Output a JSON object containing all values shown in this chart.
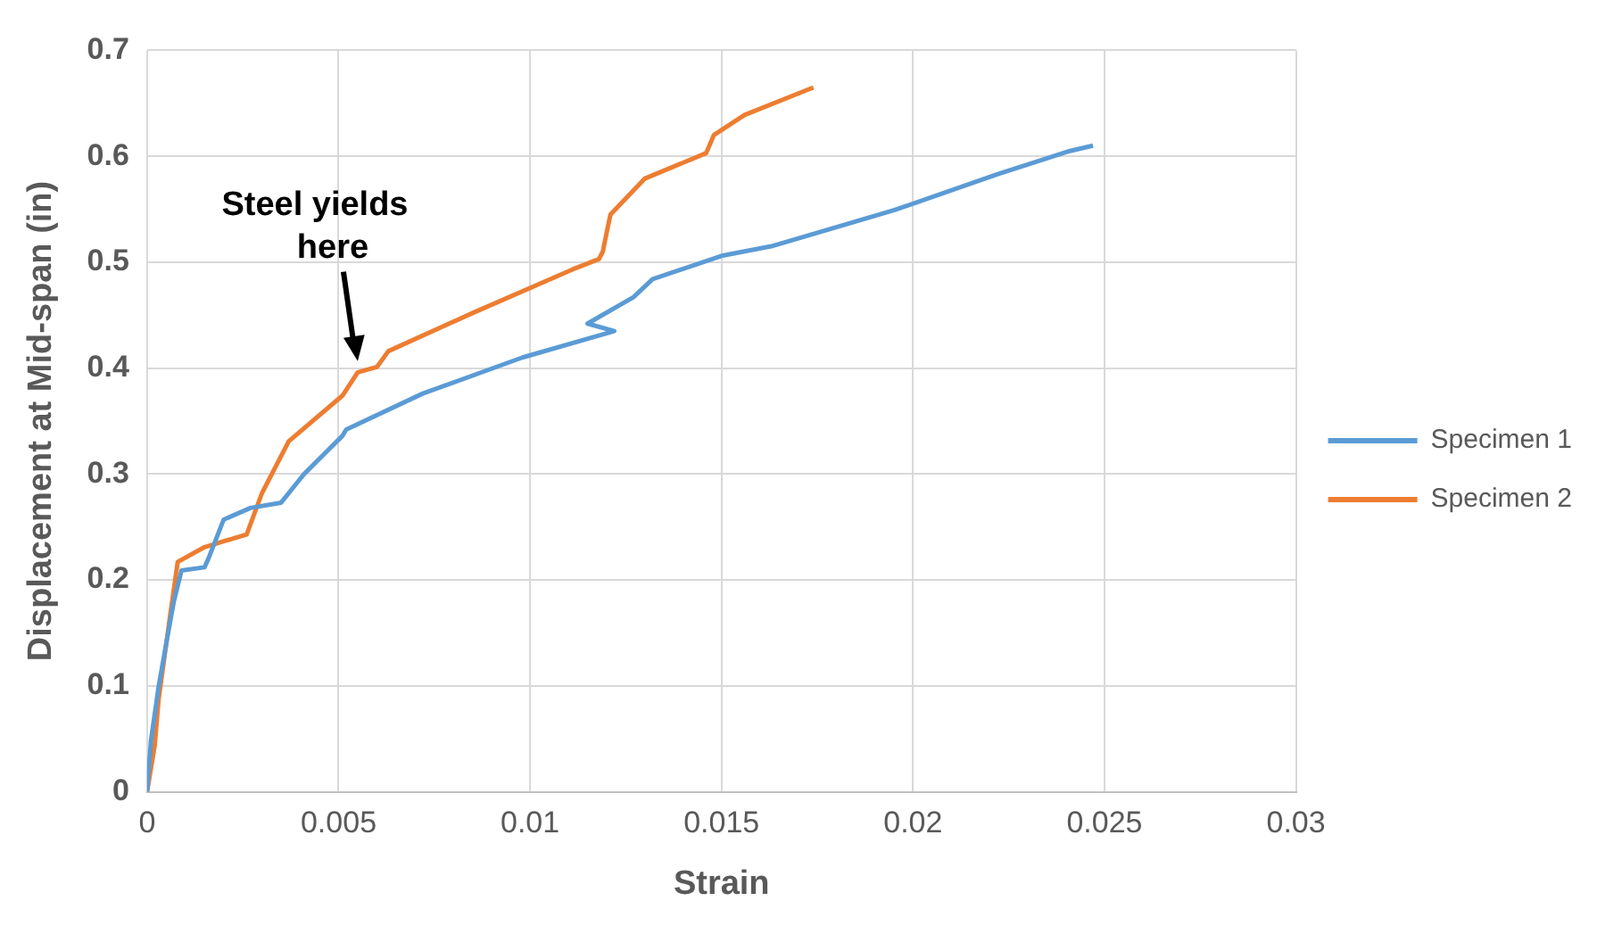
{
  "chart_data": {
    "type": "line",
    "xlabel": "Strain",
    "ylabel": "Displacement at Mid-span (in)",
    "xlim": [
      0,
      0.03
    ],
    "xticks": [
      0,
      0.005,
      0.01,
      0.015,
      0.02,
      0.025,
      0.03
    ],
    "ylim": [
      0,
      0.7
    ],
    "yticks": [
      0,
      0.1,
      0.2,
      0.3,
      0.4,
      0.5,
      0.6,
      0.7
    ],
    "grid": true,
    "legend": "right",
    "marker": "none",
    "line_style": "solid",
    "annotations": [
      {
        "text": "Steel yields here",
        "x": 0.0055,
        "y": 0.4
      }
    ],
    "series": [
      {
        "name": "Specimen 1",
        "color": "#5b9bd5",
        "x": [
          0,
          0.0001,
          0.0003,
          0.0005,
          0.0007,
          0.0009,
          0.0015,
          0.0016,
          0.002,
          0.0027,
          0.0035,
          0.0039,
          0.0041,
          0.0051,
          0.0052,
          0.0072,
          0.0098,
          0.0122,
          0.0115,
          0.0127,
          0.0132,
          0.015,
          0.0163,
          0.0195,
          0.0222,
          0.0241,
          0.0247
        ],
        "values": [
          0,
          0.048,
          0.099,
          0.14,
          0.18,
          0.209,
          0.212,
          0.22,
          0.257,
          0.268,
          0.273,
          0.291,
          0.3,
          0.336,
          0.342,
          0.376,
          0.41,
          0.435,
          0.442,
          0.467,
          0.484,
          0.506,
          0.515,
          0.549,
          0.583,
          0.605,
          0.61
        ]
      },
      {
        "name": "Specimen 2",
        "color": "#ed7d31",
        "x": [
          0,
          0.0002,
          0.0003,
          0.0006,
          0.0008,
          0.0015,
          0.0026,
          0.003,
          0.0037,
          0.0051,
          0.0055,
          0.006,
          0.0063,
          0.0085,
          0.0111,
          0.0118,
          0.0119,
          0.012,
          0.0121,
          0.013,
          0.0146,
          0.0148,
          0.0156,
          0.0174
        ],
        "values": [
          0,
          0.044,
          0.087,
          0.166,
          0.217,
          0.231,
          0.243,
          0.282,
          0.331,
          0.374,
          0.396,
          0.401,
          0.416,
          0.452,
          0.493,
          0.503,
          0.51,
          0.528,
          0.545,
          0.579,
          0.603,
          0.62,
          0.639,
          0.665
        ]
      }
    ]
  }
}
